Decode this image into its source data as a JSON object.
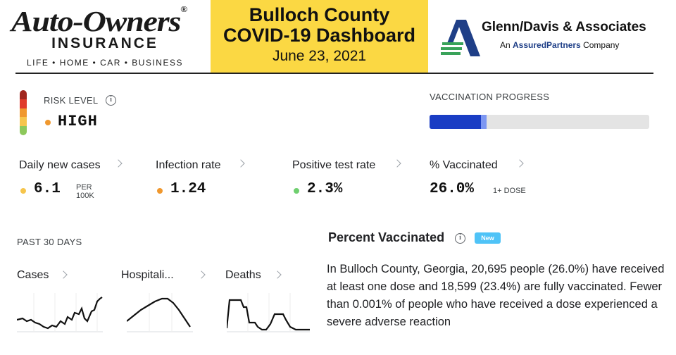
{
  "header": {
    "left_logo": {
      "brand": "Auto-Owners",
      "reg_mark": "®",
      "subtitle": "INSURANCE",
      "tagline": "LIFE • HOME • CAR • BUSINESS"
    },
    "title_line1": "Bulloch County",
    "title_line2": "COVID-19 Dashboard",
    "date": "June 23, 2021",
    "right_logo": {
      "name": "Glenn/Davis & Associates",
      "sub_prefix": "An ",
      "sub_brand": "AssuredPartners",
      "sub_suffix": " Company"
    }
  },
  "risk": {
    "title": "RISK LEVEL",
    "info": "i",
    "value": "HIGH",
    "scale_colors": [
      "#a0261e",
      "#e03c2d",
      "#f0982e",
      "#f6c54c",
      "#8dc85b"
    ],
    "dot_color": "#f0982e"
  },
  "vaccination_progress": {
    "title": "VACCINATION PROGRESS",
    "fully_pct": 23.4,
    "one_dose_pct": 26.0
  },
  "metrics": [
    {
      "label": "Daily new cases",
      "value": "6.1",
      "unit": "PER 100K",
      "unit_line1": "PER",
      "unit_line2": "100K",
      "dot_color": "#f6c54c"
    },
    {
      "label": "Infection rate",
      "value": "1.24",
      "unit": "",
      "dot_color": "#f0982e"
    },
    {
      "label": "Positive test rate",
      "value": "2.3%",
      "unit": "",
      "dot_color": "#6fcf6f"
    },
    {
      "label": "% Vaccinated",
      "value": "26.0%",
      "unit": "1+ DOSE",
      "dot_color": ""
    }
  ],
  "past30": {
    "title": "PAST 30 DAYS",
    "charts": [
      {
        "label": "Cases",
        "icon": "chevron-right-icon"
      },
      {
        "label": "Hospitali...",
        "icon": "chevron-right-icon"
      },
      {
        "label": "Deaths",
        "icon": "chevron-right-icon"
      }
    ]
  },
  "percent_vaccinated": {
    "title": "Percent Vaccinated",
    "badge": "New",
    "info": "i",
    "body": "In Bulloch County, Georgia, 20,695 people (26.0%) have received at least one dose and 18,599 (23.4%) are fully vaccinated. Fewer than 0.001% of people who have received a dose experienced a severe adverse reaction"
  }
}
